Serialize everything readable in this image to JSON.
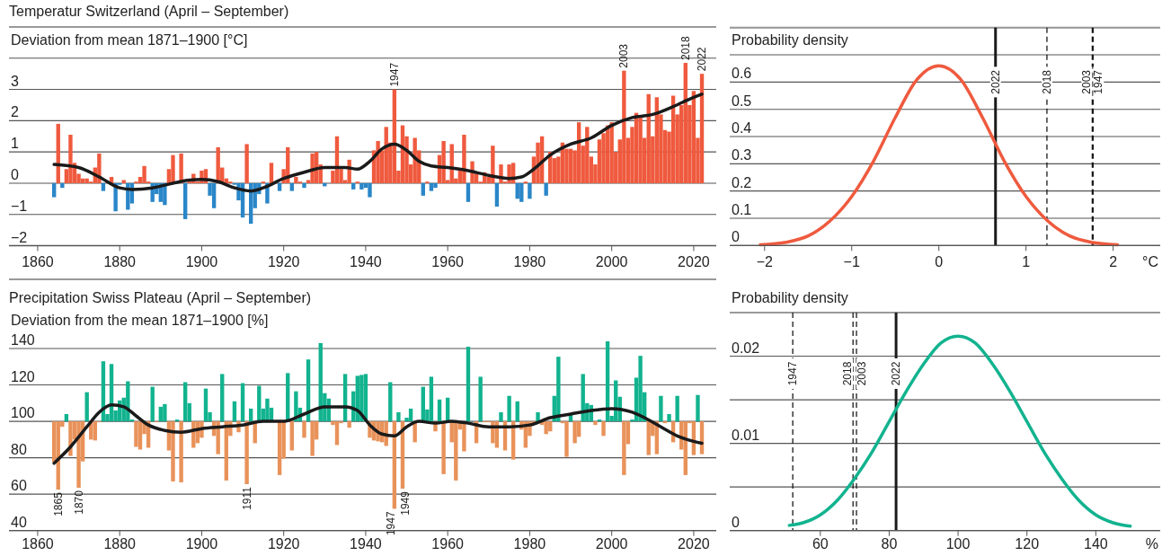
{
  "chart_data": [
    {
      "type": "bar",
      "title": "Temperatur Switzerland  (April – September)",
      "ylabel": "Deviation from mean  1871–1900 [°C]",
      "grid": "y",
      "xlim": [
        1853,
        2025.5
      ],
      "xticks": [
        1860,
        1880,
        1900,
        1920,
        1940,
        1960,
        1980,
        2000,
        2020
      ],
      "ylim": [
        -2,
        5
      ],
      "yticks": [
        {
          "value": -2,
          "label": "−2"
        },
        {
          "value": -1,
          "label": "−1"
        },
        0,
        1,
        2,
        3,
        {
          "value": 4,
          "label": null
        }
      ],
      "x": [
        1864,
        1865,
        1866,
        1867,
        1868,
        1869,
        1870,
        1871,
        1872,
        1873,
        1874,
        1875,
        1876,
        1877,
        1878,
        1879,
        1880,
        1881,
        1882,
        1883,
        1884,
        1885,
        1886,
        1887,
        1888,
        1889,
        1890,
        1891,
        1892,
        1893,
        1894,
        1895,
        1896,
        1897,
        1898,
        1899,
        1900,
        1901,
        1902,
        1903,
        1904,
        1905,
        1906,
        1907,
        1908,
        1909,
        1910,
        1911,
        1912,
        1913,
        1914,
        1915,
        1916,
        1917,
        1918,
        1919,
        1920,
        1921,
        1922,
        1923,
        1924,
        1925,
        1926,
        1927,
        1928,
        1929,
        1930,
        1931,
        1932,
        1933,
        1934,
        1935,
        1936,
        1937,
        1938,
        1939,
        1940,
        1941,
        1942,
        1943,
        1944,
        1945,
        1946,
        1947,
        1948,
        1949,
        1950,
        1951,
        1952,
        1953,
        1954,
        1955,
        1956,
        1957,
        1958,
        1959,
        1960,
        1961,
        1962,
        1963,
        1964,
        1965,
        1966,
        1967,
        1968,
        1969,
        1970,
        1971,
        1972,
        1973,
        1974,
        1975,
        1976,
        1977,
        1978,
        1979,
        1980,
        1981,
        1982,
        1983,
        1984,
        1985,
        1986,
        1987,
        1988,
        1989,
        1990,
        1991,
        1992,
        1993,
        1994,
        1995,
        1996,
        1997,
        1998,
        1999,
        2000,
        2001,
        2002,
        2003,
        2004,
        2005,
        2006,
        2007,
        2008,
        2009,
        2010,
        2011,
        2012,
        2013,
        2014,
        2015,
        2016,
        2017,
        2018,
        2019,
        2020,
        2021,
        2022
      ],
      "series": [
        {
          "values": [
            -0.45,
            1.9,
            -0.15,
            0.45,
            1.55,
            0.65,
            0.3,
            0.15,
            0.15,
            0.05,
            0.5,
            0.95,
            -0.25,
            null,
            0.2,
            -0.9,
            -0.05,
            0.1,
            -0.85,
            -0.65,
            0.05,
            0.2,
            0.55,
            0.05,
            -0.6,
            -0.35,
            -0.6,
            -0.7,
            0.45,
            0.9,
            null,
            0.95,
            -1.15,
            0.05,
            0.3,
            0.05,
            0.4,
            0.45,
            -0.4,
            -0.8,
            1.15,
            0.5,
            0.15,
            0.05,
            -0.05,
            -0.55,
            -1.1,
            1.25,
            -1.3,
            -0.8,
            -0.35,
            0.05,
            -0.65,
            0.65,
            null,
            -0.25,
            0.45,
            1.15,
            -0.25,
            0.2,
            0.05,
            -0.15,
            0.1,
            0.95,
            1.0,
            0.6,
            -0.1,
            null,
            0.4,
            1.5,
            0.45,
            0.1,
            0.75,
            -0.2,
            0.05,
            -0.2,
            -0.15,
            -0.45,
            1.05,
            1.35,
            1.05,
            1.8,
            1.3,
            3.0,
            0.4,
            1.85,
            1.5,
            0.6,
            1.45,
            1.05,
            -0.4,
            0.05,
            -0.25,
            -0.15,
            0.9,
            1.35,
            0.1,
            1.25,
            0.15,
            0.45,
            1.55,
            -0.6,
            0.7,
            0.3,
            0.05,
            0.35,
            0.2,
            1.2,
            -0.75,
            0.6,
            0.05,
            0.6,
            0.65,
            -0.5,
            -0.6,
            0.05,
            -0.5,
            0.85,
            1.3,
            1.5,
            -0.4,
            1.0,
            0.8,
            0.85,
            1.3,
            1.1,
            1.1,
            1.05,
            1.95,
            1.2,
            1.8,
            0.85,
            0.6,
            1.4,
            1.6,
            1.85,
            1.95,
            1.0,
            1.4,
            3.6,
            1.45,
            1.8,
            2.25,
            2.1,
            1.45,
            2.85,
            1.5,
            2.75,
            2.2,
            1.7,
            1.65,
            2.8,
            2.2,
            2.5,
            3.85,
            2.5,
            2.95,
            1.45,
            3.5
          ],
          "colors": [
            "#2a86c8",
            "#ef5a3e",
            "#2a86c8",
            "#ef5a3e",
            "#ef5a3e",
            "#ef5a3e",
            "#ef5a3e",
            "#ef5a3e",
            "#ef5a3e",
            "#ef5a3e",
            "#ef5a3e",
            "#ef5a3e",
            "#2a86c8",
            null,
            "#ef5a3e",
            "#2a86c8",
            "#2a86c8",
            "#ef5a3e",
            "#2a86c8",
            "#2a86c8",
            "#ef5a3e",
            "#ef5a3e",
            "#ef5a3e",
            "#ef5a3e",
            "#2a86c8",
            "#2a86c8",
            "#2a86c8",
            "#2a86c8",
            "#ef5a3e",
            "#ef5a3e",
            null,
            "#ef5a3e",
            "#2a86c8",
            "#ef5a3e",
            "#ef5a3e",
            "#ef5a3e",
            "#ef5a3e",
            "#ef5a3e",
            "#2a86c8",
            "#2a86c8",
            "#ef5a3e",
            "#ef5a3e",
            "#ef5a3e",
            "#ef5a3e",
            "#2a86c8",
            "#2a86c8",
            "#2a86c8",
            "#ef5a3e",
            "#2a86c8",
            "#2a86c8",
            "#2a86c8",
            "#ef5a3e",
            "#2a86c8",
            "#ef5a3e",
            null,
            "#2a86c8",
            "#ef5a3e",
            "#ef5a3e",
            "#2a86c8",
            "#ef5a3e",
            "#ef5a3e",
            "#2a86c8",
            "#ef5a3e",
            "#ef5a3e",
            "#ef5a3e",
            "#ef5a3e",
            "#2a86c8",
            null,
            "#ef5a3e",
            "#ef5a3e",
            "#ef5a3e",
            "#ef5a3e",
            "#ef5a3e",
            "#2a86c8",
            "#ef5a3e",
            "#2a86c8",
            "#2a86c8",
            "#2a86c8",
            "#ef5a3e",
            "#ef5a3e",
            "#ef5a3e",
            "#ef5a3e",
            "#ef5a3e",
            "#ef5a3e",
            "#ef5a3e",
            "#ef5a3e",
            "#ef5a3e",
            "#ef5a3e",
            "#ef5a3e",
            "#ef5a3e",
            "#2a86c8",
            "#ef5a3e",
            "#2a86c8",
            "#2a86c8",
            "#ef5a3e",
            "#ef5a3e",
            "#ef5a3e",
            "#ef5a3e",
            "#ef5a3e",
            "#ef5a3e",
            "#ef5a3e",
            "#2a86c8",
            "#ef5a3e",
            "#ef5a3e",
            "#ef5a3e",
            "#ef5a3e",
            "#ef5a3e",
            "#ef5a3e",
            "#2a86c8",
            "#ef5a3e",
            "#ef5a3e",
            "#ef5a3e",
            "#ef5a3e",
            "#2a86c8",
            "#2a86c8",
            "#ef5a3e",
            "#2a86c8",
            "#ef5a3e",
            "#ef5a3e",
            "#ef5a3e",
            "#2a86c8",
            "#ef5a3e",
            "#ef5a3e",
            "#ef5a3e",
            "#ef5a3e",
            "#ef5a3e",
            "#ef5a3e",
            "#ef5a3e",
            "#ef5a3e",
            "#ef5a3e",
            "#ef5a3e",
            "#ef5a3e",
            "#ef5a3e",
            "#ef5a3e",
            "#ef5a3e",
            "#ef5a3e",
            "#ef5a3e",
            "#ef5a3e",
            "#ef5a3e",
            "#ef5a3e",
            "#ef5a3e",
            "#ef5a3e",
            "#ef5a3e",
            "#ef5a3e",
            "#ef5a3e",
            "#ef5a3e",
            "#ef5a3e",
            "#ef5a3e",
            "#ef5a3e",
            "#ef5a3e",
            "#ef5a3e",
            "#ef5a3e",
            "#ef5a3e",
            "#ef5a3e",
            "#ef5a3e",
            "#ef5a3e",
            "#ef5a3e",
            "#ef5a3e",
            "#ef5a3e"
          ]
        },
        {
          "type": "line",
          "color": "#1a1a1a",
          "x": [
            1864,
            1870,
            1875,
            1880,
            1883,
            1888,
            1893,
            1897,
            1900,
            1904,
            1908,
            1912,
            1915,
            1920,
            1925,
            1930,
            1935,
            1938,
            1941,
            1944,
            1947,
            1950,
            1953,
            1956,
            1960,
            1965,
            1970,
            1975,
            1978,
            1981,
            1985,
            1990,
            1995,
            2000,
            2005,
            2010,
            2015,
            2020,
            2022
          ],
          "values": [
            0.6,
            0.5,
            0.2,
            -0.15,
            -0.2,
            -0.15,
            0,
            0.1,
            0.12,
            0.05,
            -0.15,
            -0.25,
            -0.15,
            0.15,
            0.35,
            0.5,
            0.5,
            0.45,
            0.7,
            1.1,
            1.25,
            1.05,
            0.7,
            0.55,
            0.5,
            0.4,
            0.25,
            0.15,
            0.2,
            0.45,
            0.9,
            1.25,
            1.45,
            1.85,
            2.1,
            2.2,
            2.45,
            2.75,
            2.85
          ]
        }
      ],
      "annotations": [
        {
          "text": "1947",
          "x": 1947,
          "y": 3.0
        },
        {
          "text": "2003",
          "x": 2003,
          "y": 3.6
        },
        {
          "text": "2018",
          "x": 2018,
          "y": 3.85
        },
        {
          "text": "2022",
          "x": 2022,
          "y": 3.5
        }
      ]
    },
    {
      "type": "bar",
      "title": "Precipitation Swiss Plateau (April – September)",
      "ylabel": "Deviation from the mean 1871–1900 [%]",
      "grid": "y",
      "xlim": [
        1853,
        2025.5
      ],
      "xticks": [
        1860,
        1880,
        1900,
        1920,
        1940,
        1960,
        1980,
        2000,
        2020
      ],
      "ylim": [
        40,
        178
      ],
      "yticks": [
        40,
        60,
        80,
        100,
        120,
        140
      ],
      "x": [
        1864,
        1865,
        1866,
        1867,
        1868,
        1869,
        1870,
        1871,
        1872,
        1873,
        1874,
        1875,
        1876,
        1877,
        1878,
        1879,
        1880,
        1881,
        1882,
        1883,
        1884,
        1885,
        1886,
        1887,
        1888,
        1889,
        1890,
        1891,
        1892,
        1893,
        1894,
        1895,
        1896,
        1897,
        1898,
        1899,
        1900,
        1901,
        1902,
        1903,
        1904,
        1905,
        1906,
        1907,
        1908,
        1909,
        1910,
        1911,
        1912,
        1913,
        1914,
        1915,
        1916,
        1917,
        1918,
        1919,
        1920,
        1921,
        1922,
        1923,
        1924,
        1925,
        1926,
        1927,
        1928,
        1929,
        1930,
        1931,
        1932,
        1933,
        1934,
        1935,
        1936,
        1937,
        1938,
        1939,
        1940,
        1941,
        1942,
        1943,
        1944,
        1945,
        1946,
        1947,
        1948,
        1949,
        1950,
        1951,
        1952,
        1953,
        1954,
        1955,
        1956,
        1957,
        1958,
        1959,
        1960,
        1961,
        1962,
        1963,
        1964,
        1965,
        1966,
        1967,
        1968,
        1969,
        1970,
        1971,
        1972,
        1973,
        1974,
        1975,
        1976,
        1977,
        1978,
        1979,
        1980,
        1981,
        1982,
        1983,
        1984,
        1985,
        1986,
        1987,
        1988,
        1989,
        1990,
        1991,
        1992,
        1993,
        1994,
        1995,
        1996,
        1997,
        1998,
        1999,
        2000,
        2001,
        2002,
        2003,
        2004,
        2005,
        2006,
        2007,
        2008,
        2009,
        2010,
        2011,
        2012,
        2013,
        2014,
        2015,
        2016,
        2017,
        2018,
        2019,
        2020,
        2021,
        2022
      ],
      "series": [
        {
          "values": [
            -22.5,
            -37.5,
            -3,
            4,
            -19,
            -10,
            -36.5,
            -22,
            16,
            -10,
            -10.5,
            -0.5,
            33,
            4,
            31.5,
            6,
            11.5,
            13,
            22,
            1,
            -14,
            -15.5,
            -7,
            -14.5,
            19,
            -0.5,
            8,
            9.5,
            -16,
            -33,
            1,
            -33.5,
            21.5,
            10,
            -14.5,
            -12,
            -9,
            18,
            5,
            -8,
            -18,
            26,
            -32.5,
            -8,
            11,
            -6,
            21,
            -34.5,
            7,
            -12,
            19.5,
            7,
            12.5,
            7.5,
            null,
            -29.5,
            -20.5,
            26.5,
            -16,
            16.5,
            7.5,
            -9,
            34,
            -19,
            -10,
            43,
            15.5,
            12.5,
            -2,
            -13,
            -1,
            26,
            -3.5,
            16.5,
            25,
            25.5,
            26,
            -9,
            -10.5,
            -11,
            -11.5,
            -13.5,
            21.5,
            -48,
            5,
            -37,
            2,
            7,
            -11.5,
            -0.5,
            19,
            6.5,
            24.5,
            -5.5,
            12,
            -29,
            13,
            -11.5,
            -32.5,
            -4.5,
            -16.5,
            41,
            null,
            -12,
            24.5,
            -0.5,
            -0.5,
            -12,
            -14.5,
            5,
            -16,
            14,
            -21,
            11,
            -4.5,
            -14.5,
            -8,
            -1,
            5,
            -2,
            -7,
            -5.5,
            14,
            35.5,
            -1,
            -19.5,
            4,
            -12,
            -8.5,
            26,
            10,
            9,
            -2,
            1,
            -8,
            44,
            3,
            22.5,
            13.5,
            -29.5,
            -12.5,
            1,
            24,
            36,
            16,
            -18.5,
            -8,
            -18,
            14,
            -1,
            4,
            -11.5,
            14,
            -15.5,
            -29.5,
            -1,
            -18.5,
            14.5,
            -18
          ],
          "base": [
            100,
            100,
            100,
            100,
            100,
            100,
            100,
            100,
            100,
            100,
            100,
            100,
            100,
            100,
            100,
            100,
            100,
            100,
            100,
            100,
            100,
            100,
            100,
            100,
            100,
            100,
            100,
            100,
            100,
            100,
            100,
            100,
            100,
            100,
            100,
            100,
            100,
            100,
            100,
            100,
            100,
            100,
            100,
            100,
            100,
            100,
            100,
            100,
            100,
            100,
            100,
            100,
            100,
            100,
            null,
            100,
            100,
            100,
            100,
            100,
            100,
            100,
            100,
            100,
            100,
            100,
            100,
            100,
            100,
            100,
            100,
            100,
            100,
            100,
            100,
            100,
            100,
            100,
            100,
            100,
            100,
            100,
            100,
            100,
            100,
            100,
            100,
            100,
            100,
            100,
            100,
            100,
            100,
            100,
            100,
            100,
            100,
            100,
            100,
            100,
            100,
            100,
            null,
            100,
            100,
            100,
            100,
            100,
            100,
            100,
            100,
            100,
            100,
            100,
            100,
            100,
            100,
            100,
            100,
            100,
            100,
            100,
            100,
            100,
            100,
            100,
            100,
            100,
            100,
            100,
            100,
            100,
            100,
            100,
            100,
            100,
            100,
            100,
            100,
            100,
            100,
            100,
            100,
            100,
            100,
            100,
            100,
            100,
            100,
            100,
            100,
            100,
            100,
            100,
            100,
            100,
            100,
            100,
            100
          ],
          "colors": [
            "#e8925a",
            "#e8925a",
            "#e8925a",
            "#12b38f",
            "#e8925a",
            "#e8925a",
            "#e8925a",
            "#e8925a",
            "#12b38f",
            "#e8925a",
            "#e8925a",
            "#e8925a",
            "#12b38f",
            "#12b38f",
            "#12b38f",
            "#12b38f",
            "#12b38f",
            "#12b38f",
            "#12b38f",
            "#12b38f",
            "#e8925a",
            "#e8925a",
            "#e8925a",
            "#e8925a",
            "#12b38f",
            "#e8925a",
            "#12b38f",
            "#12b38f",
            "#e8925a",
            "#e8925a",
            "#12b38f",
            "#e8925a",
            "#12b38f",
            "#12b38f",
            "#e8925a",
            "#e8925a",
            "#e8925a",
            "#12b38f",
            "#12b38f",
            "#e8925a",
            "#e8925a",
            "#12b38f",
            "#e8925a",
            "#e8925a",
            "#12b38f",
            "#e8925a",
            "#12b38f",
            "#e8925a",
            "#12b38f",
            "#e8925a",
            "#12b38f",
            "#12b38f",
            "#12b38f",
            "#12b38f",
            null,
            "#e8925a",
            "#e8925a",
            "#12b38f",
            "#e8925a",
            "#12b38f",
            "#12b38f",
            "#e8925a",
            "#12b38f",
            "#e8925a",
            "#e8925a",
            "#12b38f",
            "#12b38f",
            "#12b38f",
            "#e8925a",
            "#e8925a",
            "#e8925a",
            "#12b38f",
            "#e8925a",
            "#12b38f",
            "#12b38f",
            "#12b38f",
            "#12b38f",
            "#e8925a",
            "#e8925a",
            "#e8925a",
            "#e8925a",
            "#e8925a",
            "#12b38f",
            "#e8925a",
            "#12b38f",
            "#e8925a",
            "#12b38f",
            "#12b38f",
            "#e8925a",
            "#e8925a",
            "#12b38f",
            "#12b38f",
            "#12b38f",
            "#e8925a",
            "#12b38f",
            "#e8925a",
            "#12b38f",
            "#e8925a",
            "#e8925a",
            "#e8925a",
            "#e8925a",
            "#12b38f",
            null,
            "#e8925a",
            "#12b38f",
            "#e8925a",
            "#e8925a",
            "#e8925a",
            "#e8925a",
            "#12b38f",
            "#e8925a",
            "#12b38f",
            "#e8925a",
            "#12b38f",
            "#e8925a",
            "#e8925a",
            "#e8925a",
            "#e8925a",
            "#12b38f",
            "#e8925a",
            "#e8925a",
            "#e8925a",
            "#12b38f",
            "#12b38f",
            "#e8925a",
            "#e8925a",
            "#12b38f",
            "#e8925a",
            "#e8925a",
            "#12b38f",
            "#12b38f",
            "#12b38f",
            "#e8925a",
            "#12b38f",
            "#e8925a",
            "#12b38f",
            "#12b38f",
            "#12b38f",
            "#12b38f",
            "#e8925a",
            "#e8925a",
            "#12b38f",
            "#12b38f",
            "#12b38f",
            "#12b38f",
            "#e8925a",
            "#e8925a",
            "#e8925a",
            "#12b38f",
            "#e8925a",
            "#12b38f",
            "#e8925a",
            "#12b38f",
            "#e8925a",
            "#e8925a",
            "#e8925a",
            "#e8925a",
            "#12b38f",
            "#e8925a"
          ]
        },
        {
          "type": "line",
          "color": "#1a1a1a",
          "x": [
            1864,
            1868,
            1872,
            1875,
            1878,
            1881,
            1884,
            1887,
            1891,
            1895,
            1900,
            1905,
            1910,
            1915,
            1920,
            1925,
            1930,
            1935,
            1938,
            1941,
            1944,
            1947,
            1950,
            1953,
            1957,
            1961,
            1965,
            1970,
            1975,
            1980,
            1985,
            1990,
            1995,
            2000,
            2005,
            2008,
            2012,
            2016,
            2020,
            2022
          ],
          "values": [
            77,
            86,
            97,
            105,
            109,
            108,
            103,
            98,
            95,
            94,
            96,
            97,
            98,
            100,
            100,
            104,
            108,
            108,
            106,
            98,
            93,
            92,
            97,
            100,
            99,
            100,
            99,
            97,
            97,
            98,
            102,
            104,
            106,
            107,
            105,
            102,
            97,
            92,
            89,
            88
          ]
        }
      ],
      "annotations": [
        {
          "text": "1865",
          "x": 1865,
          "y": 62.5
        },
        {
          "text": "1870",
          "x": 1870,
          "y": 63.5
        },
        {
          "text": "1911",
          "x": 1911,
          "y": 65.5
        },
        {
          "text": "1947",
          "x": 1947,
          "y": 52
        },
        {
          "text": "1949",
          "x": 1949,
          "y": 63
        }
      ]
    },
    {
      "type": "line",
      "ylabel": "Probability density",
      "xlabel": "°C",
      "grid": "y",
      "xlim": [
        -2.4,
        2.54
      ],
      "xticks": [
        {
          "value": -2,
          "label": "−2"
        },
        {
          "value": -1,
          "label": "−1"
        },
        0,
        1,
        2
      ],
      "ylim": [
        0,
        0.8
      ],
      "yticks": [
        0,
        0.1,
        0.2,
        0.3,
        0.4,
        0.5,
        0.6,
        {
          "value": 0.7,
          "label": null
        },
        {
          "value": 0.8,
          "label": null
        }
      ],
      "series": [
        {
          "color": "#ef5a3e",
          "x": [
            -2.05,
            -1.75,
            -1.5,
            -1.25,
            -1,
            -0.75,
            -0.5,
            -0.25,
            0,
            0.25,
            0.5,
            0.75,
            1,
            1.25,
            1.5,
            1.75,
            2.05
          ],
          "values": [
            0.003,
            0.012,
            0.035,
            0.09,
            0.18,
            0.31,
            0.47,
            0.61,
            0.66,
            0.61,
            0.47,
            0.31,
            0.18,
            0.09,
            0.035,
            0.012,
            0.003
          ]
        }
      ],
      "ref_lines": [
        {
          "axis": "x",
          "value": 0.65,
          "color": "#1a1a1a",
          "line_style": "solid"
        },
        {
          "axis": "x",
          "value": 1.24,
          "color": "#1a1a1a",
          "line_style": "dashed"
        },
        {
          "axis": "x",
          "value": 1.76,
          "color": "#1a1a1a",
          "line_style": "dashed"
        },
        {
          "axis": "x",
          "value": 1.77,
          "color": "#1a1a1a",
          "line_style": "dashed"
        }
      ],
      "annotations": [
        {
          "text": "2022",
          "x": 0.65,
          "y": 0.6
        },
        {
          "text": "2018",
          "x": 1.24,
          "y": 0.6
        },
        {
          "text": "2003",
          "x": 1.76,
          "y": 0.6
        },
        {
          "text": "1947",
          "x": 1.77,
          "y": 0.6
        }
      ]
    },
    {
      "type": "line",
      "ylabel": "Probability density",
      "xlabel": "%",
      "grid": "y",
      "xlim": [
        33.7,
        158.7
      ],
      "xticks": [
        60,
        80,
        100,
        120,
        140
      ],
      "ylim": [
        0,
        0.025
      ],
      "yticks": [
        0,
        {
          "value": 0.005,
          "label": null
        },
        0.01,
        {
          "value": 0.015,
          "label": null
        },
        0.02,
        {
          "value": 0.025,
          "label": null
        }
      ],
      "series": [
        {
          "color": "#12b38f",
          "x": [
            51,
            55,
            60,
            65,
            70,
            75,
            80,
            85,
            90,
            95,
            100,
            105,
            110,
            115,
            120,
            125,
            130,
            135,
            140,
            145,
            150
          ],
          "values": [
            0.0006,
            0.0009,
            0.0018,
            0.0035,
            0.006,
            0.009,
            0.0125,
            0.016,
            0.0191,
            0.0215,
            0.0223,
            0.0215,
            0.0191,
            0.016,
            0.0125,
            0.009,
            0.006,
            0.0035,
            0.0018,
            0.0009,
            0.0005
          ]
        }
      ],
      "ref_lines": [
        {
          "axis": "x",
          "value": 52,
          "color": "#1a1a1a",
          "line_style": "dashed"
        },
        {
          "axis": "x",
          "value": 69.5,
          "color": "#1a1a1a",
          "line_style": "dashed"
        },
        {
          "axis": "x",
          "value": 70.5,
          "color": "#1a1a1a",
          "line_style": "dashed"
        },
        {
          "axis": "x",
          "value": 82,
          "color": "#1a1a1a",
          "line_style": "solid"
        }
      ],
      "annotations": [
        {
          "text": "1947",
          "x": 52,
          "y": 0.018
        },
        {
          "text": "2018",
          "x": 69.5,
          "y": 0.018
        },
        {
          "text": "2003",
          "x": 70.5,
          "y": 0.018
        },
        {
          "text": "2022",
          "x": 82,
          "y": 0.018
        }
      ]
    }
  ]
}
